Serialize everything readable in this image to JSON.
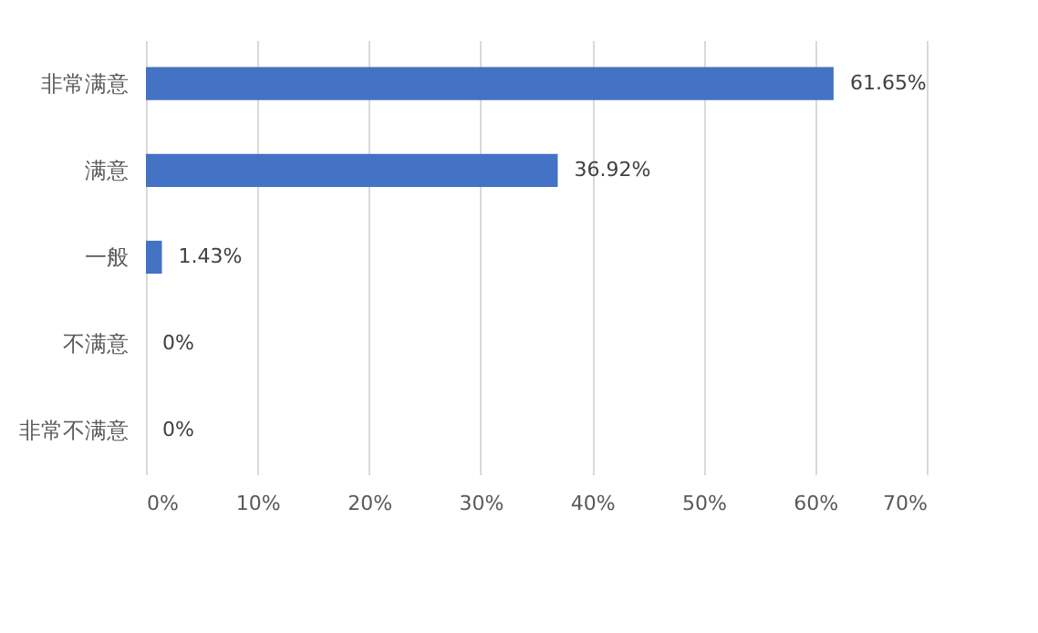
{
  "chart_data": {
    "type": "bar",
    "orientation": "horizontal",
    "categories": [
      "非常满意",
      "满意",
      "一般",
      "不满意",
      "非常不满意"
    ],
    "values": [
      61.65,
      36.92,
      1.43,
      0,
      0
    ],
    "value_labels": [
      "61.65%",
      "36.92%",
      "1.43%",
      "0%",
      "0%"
    ],
    "color": "#4472c4",
    "xlim": [
      0,
      70
    ],
    "xticks": [
      {
        "value": 0,
        "label": "0%"
      },
      {
        "value": 10,
        "label": "10%"
      },
      {
        "value": 20,
        "label": "20%"
      },
      {
        "value": 30,
        "label": "30%"
      },
      {
        "value": 40,
        "label": "40%"
      },
      {
        "value": 50,
        "label": "50%"
      },
      {
        "value": 60,
        "label": "60%"
      },
      {
        "value": 70,
        "label": "70%"
      }
    ],
    "grid": "x"
  }
}
